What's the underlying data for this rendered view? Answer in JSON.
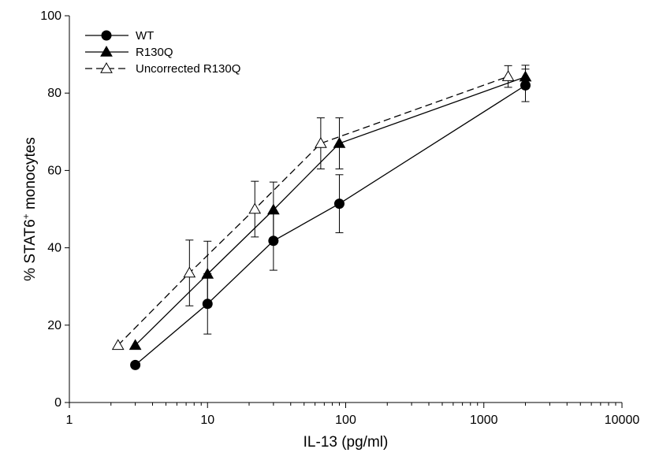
{
  "chart_data": {
    "type": "line",
    "xscale": "log",
    "xlim": [
      1,
      10000
    ],
    "ylim": [
      0,
      100
    ],
    "xticks": [
      1,
      10,
      100,
      1000,
      10000
    ],
    "xtick_labels": [
      "1",
      "10",
      "100",
      "1000",
      "10000"
    ],
    "yticks": [
      0,
      20,
      40,
      60,
      80,
      100
    ],
    "ytick_labels": [
      "0",
      "20",
      "40",
      "60",
      "80",
      "100"
    ],
    "xlabel": "IL-13 (pg/ml)",
    "ylabel_prefix": "% STAT6",
    "ylabel_sup": "+",
    "ylabel_suffix": " monocytes",
    "grid": false,
    "legend_position": "top-left",
    "series": [
      {
        "name": "WT",
        "marker": "circle",
        "fill": "#000000",
        "dash": "solid",
        "x": [
          3,
          10,
          30,
          90,
          2000
        ],
        "y": [
          9.7,
          25.5,
          41.8,
          51.4,
          82.0
        ],
        "err": [
          0,
          7.8,
          7.6,
          7.5,
          4.2
        ]
      },
      {
        "name": "R130Q",
        "marker": "triangle",
        "fill": "#000000",
        "dash": "solid",
        "x": [
          3,
          10,
          30,
          90,
          2000
        ],
        "y": [
          14.8,
          33.2,
          49.8,
          67.0,
          84.2
        ],
        "err": [
          0,
          8.5,
          7.2,
          6.6,
          3.0
        ]
      },
      {
        "name": "Uncorrected R130Q",
        "marker": "triangle-open",
        "fill": "#ffffff",
        "dash": "dashed",
        "x": [
          2.25,
          7.4,
          22,
          66,
          1500
        ],
        "y": [
          14.8,
          33.5,
          50.0,
          67.0,
          84.3
        ],
        "err": [
          0,
          8.5,
          7.2,
          6.6,
          2.8
        ]
      }
    ]
  }
}
